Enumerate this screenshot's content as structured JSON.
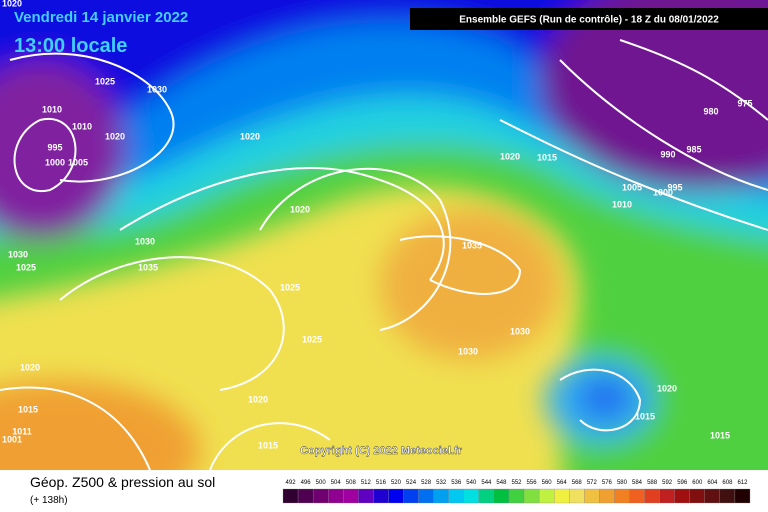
{
  "header": {
    "date": "Vendredi 14 janvier 2022",
    "time": "13:00 locale",
    "model": "Ensemble GEFS  (Run de contrôle)  -  18 Z du 08/01/2022"
  },
  "map": {
    "isobar_labels": [
      1020,
      1025,
      1030,
      1010,
      1010,
      1020,
      995,
      1000,
      1005,
      1020,
      1020,
      1030,
      1035,
      1030,
      1025,
      1025,
      1025,
      1020,
      1015,
      1011,
      1001,
      1020,
      1015,
      1035,
      1030,
      1030,
      1020,
      1015,
      990,
      985,
      980,
      975,
      1005,
      1000,
      995,
      1010,
      1020,
      1015,
      1015
    ],
    "copyright": "Copyright (C) 2022 Meteociel.fr"
  },
  "footer": {
    "title": "Géop. Z500 & pression au sol",
    "lead": "(+ 138h)",
    "scale": {
      "values": [
        492,
        496,
        500,
        504,
        508,
        512,
        516,
        520,
        524,
        528,
        532,
        536,
        540,
        544,
        548,
        552,
        556,
        560,
        564,
        568,
        572,
        576,
        580,
        584,
        588,
        592,
        596,
        600,
        604,
        608,
        612
      ],
      "colors": [
        "#300030",
        "#500050",
        "#700070",
        "#900090",
        "#a000a0",
        "#6000c0",
        "#2000d0",
        "#0000f0",
        "#0040f0",
        "#0070f0",
        "#00a0f0",
        "#00c8f0",
        "#00e0e0",
        "#00d080",
        "#00c040",
        "#40d040",
        "#80e040",
        "#c0f040",
        "#f0f040",
        "#f0e060",
        "#f0c040",
        "#f0a030",
        "#f08020",
        "#f06020",
        "#e04020",
        "#c02020",
        "#a01010",
        "#801010",
        "#601010",
        "#401010",
        "#200000"
      ]
    }
  }
}
